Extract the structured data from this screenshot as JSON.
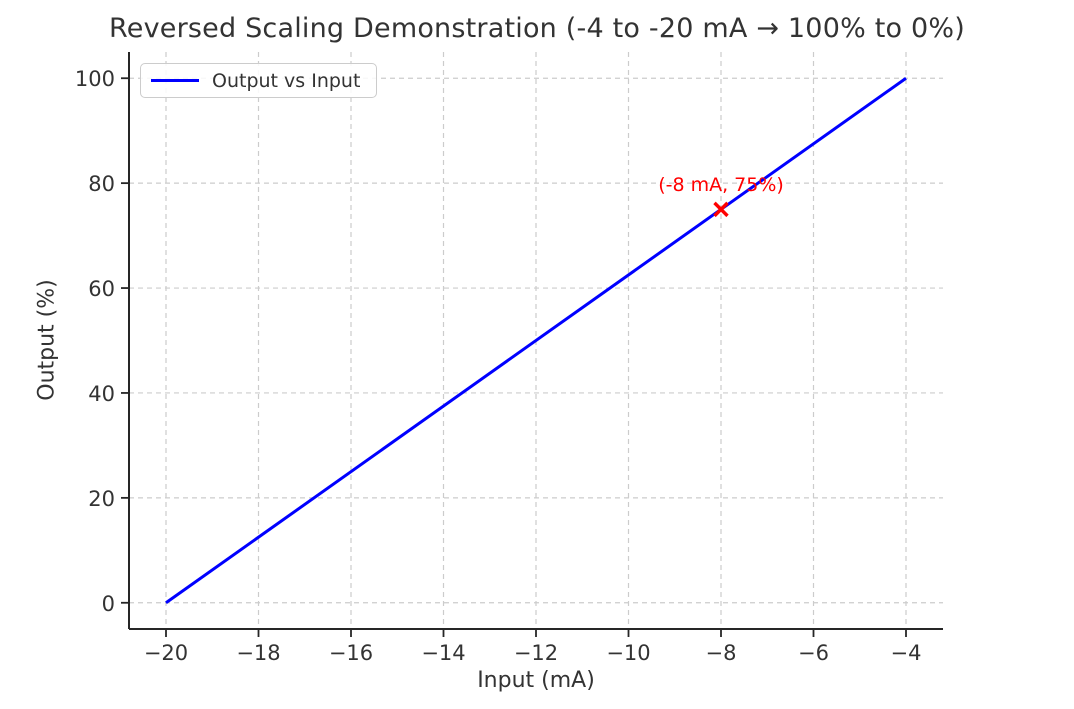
{
  "colors": {
    "line": "#0000ff",
    "annotation": "#ff0000",
    "text": "#333333",
    "spine": "#262626",
    "grid": "#cccccc",
    "background": "#ffffff"
  },
  "legend": {
    "entries": [
      {
        "label": "Output vs Input",
        "color": "#0000ff"
      }
    ]
  },
  "chart_data": {
    "type": "line",
    "title": "Reversed Scaling Demonstration (-4 to -20 mA → 100% to 0%)",
    "xlabel": "Input (mA)",
    "ylabel": "Output (%)",
    "series": [
      {
        "name": "Output vs Input",
        "color": "#0000ff",
        "x": [
          -20,
          -4
        ],
        "y": [
          0,
          100
        ]
      }
    ],
    "xticks": [
      -20,
      -18,
      -16,
      -14,
      -12,
      -10,
      -8,
      -6,
      -4
    ],
    "xtick_labels": [
      "−20",
      "−18",
      "−16",
      "−14",
      "−12",
      "−10",
      "−8",
      "−6",
      "−4"
    ],
    "yticks": [
      0,
      20,
      40,
      60,
      80,
      100
    ],
    "ytick_labels": [
      "0",
      "20",
      "40",
      "60",
      "80",
      "100"
    ],
    "xlim": [
      -20.8,
      -3.2
    ],
    "ylim": [
      -5,
      105
    ],
    "grid": true,
    "grid_style": "dashed",
    "legend_position": "upper left",
    "annotation": {
      "x": -8,
      "y": 75,
      "label": "(-8 mA, 75%)",
      "marker": "x"
    }
  }
}
